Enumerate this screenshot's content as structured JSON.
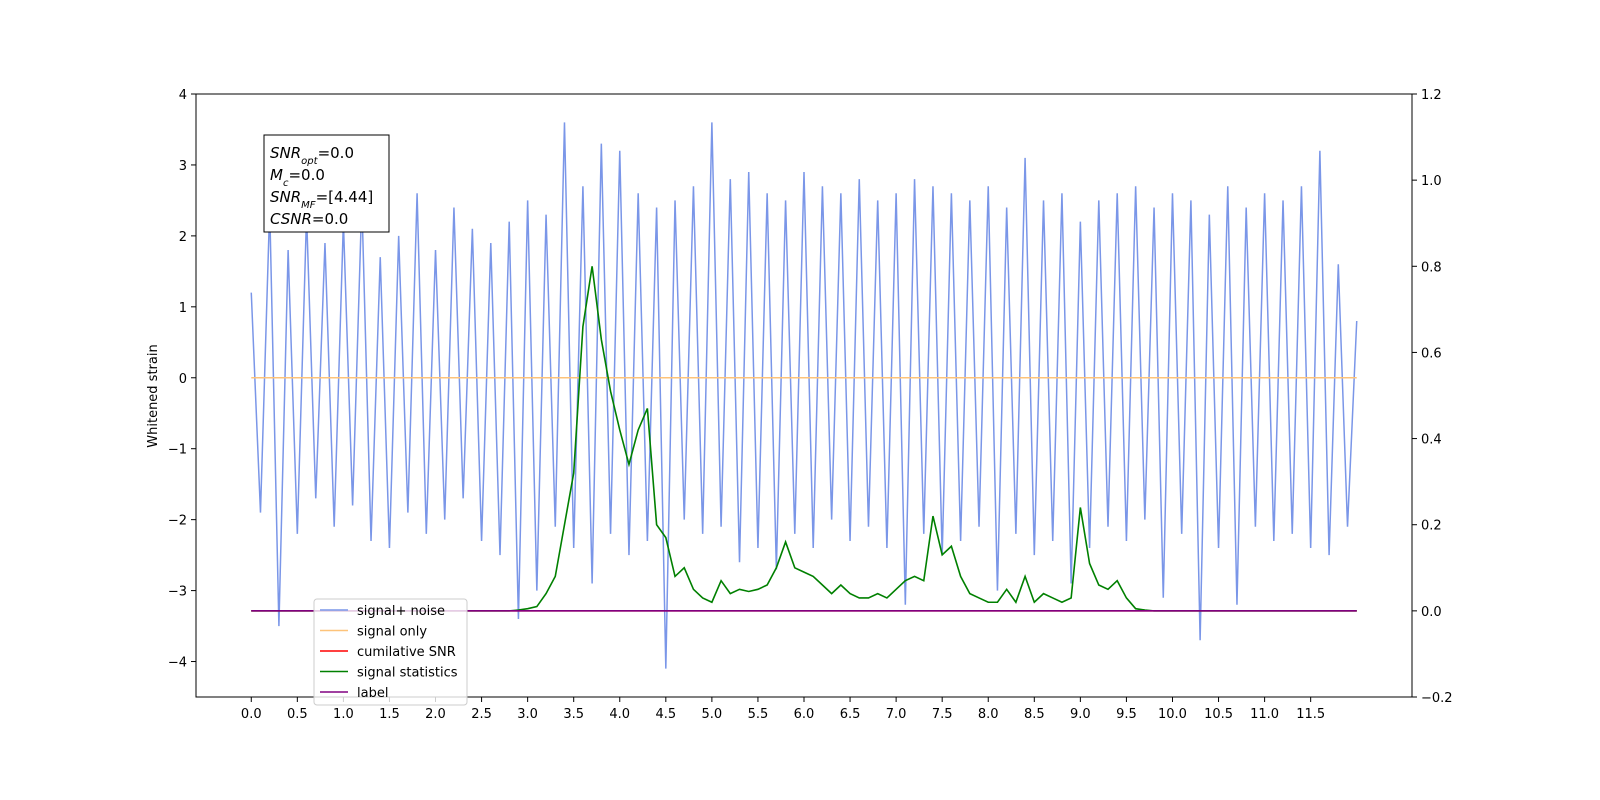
{
  "chart_data": {
    "type": "line",
    "ylabel": "Whitened strain",
    "annotations": [
      [
        "SNR",
        "opt",
        "=0.0"
      ],
      [
        "M",
        "c",
        "=0.0"
      ],
      [
        "SNR",
        "MF",
        "=[4.44]"
      ],
      [
        "CSNR",
        "",
        "=0.0"
      ]
    ],
    "x": [
      0.0,
      0.1,
      0.2,
      0.3,
      0.4,
      0.5,
      0.6,
      0.7,
      0.8,
      0.9,
      1.0,
      1.1,
      1.2,
      1.3,
      1.4,
      1.5,
      1.6,
      1.7,
      1.8,
      1.9,
      2.0,
      2.1,
      2.2,
      2.3,
      2.4,
      2.5,
      2.6,
      2.7,
      2.8,
      2.9,
      3.0,
      3.1,
      3.2,
      3.3,
      3.4,
      3.5,
      3.6,
      3.7,
      3.8,
      3.9,
      4.0,
      4.1,
      4.2,
      4.3,
      4.4,
      4.5,
      4.6,
      4.7,
      4.8,
      4.9,
      5.0,
      5.1,
      5.2,
      5.3,
      5.4,
      5.5,
      5.6,
      5.7,
      5.8,
      5.9,
      6.0,
      6.1,
      6.2,
      6.3,
      6.4,
      6.5,
      6.6,
      6.7,
      6.8,
      6.9,
      7.0,
      7.1,
      7.2,
      7.3,
      7.4,
      7.5,
      7.6,
      7.7,
      7.8,
      7.9,
      8.0,
      8.1,
      8.2,
      8.3,
      8.4,
      8.5,
      8.6,
      8.7,
      8.8,
      8.9,
      9.0,
      9.1,
      9.2,
      9.3,
      9.4,
      9.5,
      9.6,
      9.7,
      9.8,
      9.9,
      10.0,
      10.1,
      10.2,
      10.3,
      10.4,
      10.5,
      10.6,
      10.7,
      10.8,
      10.9,
      11.0,
      11.1,
      11.2,
      11.3,
      11.4,
      11.5,
      11.6,
      11.7,
      11.8,
      11.9,
      12.0
    ],
    "series": [
      {
        "name": "signal+ noise",
        "color": "#7a96e8",
        "values": [
          1.2,
          -1.9,
          2.4,
          -3.5,
          1.8,
          -2.2,
          2.3,
          -1.7,
          1.9,
          -2.1,
          2.2,
          -1.8,
          2.5,
          -2.3,
          1.7,
          -2.4,
          2.0,
          -1.9,
          2.6,
          -2.2,
          1.8,
          -2.0,
          2.4,
          -1.7,
          2.1,
          -2.3,
          1.9,
          -2.5,
          2.2,
          -3.4,
          2.5,
          -3.0,
          2.3,
          -2.1,
          3.6,
          -2.4,
          2.7,
          -2.9,
          3.3,
          -2.2,
          3.2,
          -2.5,
          2.6,
          -2.3,
          2.4,
          -4.1,
          2.5,
          -2.0,
          2.7,
          -2.2,
          3.6,
          -2.1,
          2.8,
          -2.6,
          2.9,
          -2.4,
          2.6,
          -2.7,
          2.5,
          -2.2,
          2.9,
          -2.4,
          2.7,
          -2.0,
          2.6,
          -2.3,
          2.8,
          -2.1,
          2.5,
          -2.4,
          2.6,
          -3.2,
          2.8,
          -2.2,
          2.7,
          -2.5,
          2.6,
          -2.3,
          2.5,
          -2.1,
          2.7,
          -3.0,
          2.4,
          -2.2,
          3.1,
          -2.5,
          2.5,
          -2.3,
          2.6,
          -2.9,
          2.2,
          -2.4,
          2.5,
          -2.1,
          2.6,
          -2.3,
          2.7,
          -2.0,
          2.4,
          -3.1,
          2.6,
          -2.2,
          2.5,
          -3.7,
          2.3,
          -2.4,
          2.7,
          -3.2,
          2.4,
          -2.1,
          2.6,
          -2.3,
          2.5,
          -2.2,
          2.7,
          -2.4,
          3.2,
          -2.5,
          1.6,
          -2.1,
          0.8
        ]
      },
      {
        "name": "signal only",
        "color": "#fdc37a",
        "values": [
          0,
          0,
          0,
          0,
          0,
          0,
          0,
          0,
          0,
          0,
          0,
          0,
          0,
          0,
          0,
          0,
          0,
          0,
          0,
          0,
          0,
          0,
          0,
          0,
          0,
          0,
          0,
          0,
          0,
          0,
          0,
          0,
          0,
          0,
          0,
          0,
          0,
          0,
          0,
          0,
          0,
          0,
          0,
          0,
          0,
          0,
          0,
          0,
          0,
          0,
          0,
          0,
          0,
          0,
          0,
          0,
          0,
          0,
          0,
          0,
          0,
          0,
          0,
          0,
          0,
          0,
          0,
          0,
          0,
          0,
          0,
          0,
          0,
          0,
          0,
          0,
          0,
          0,
          0,
          0,
          0,
          0,
          0,
          0,
          0,
          0,
          0,
          0,
          0,
          0,
          0,
          0,
          0,
          0,
          0,
          0,
          0,
          0,
          0,
          0,
          0,
          0,
          0,
          0,
          0,
          0,
          0,
          0,
          0,
          0,
          0,
          0,
          0,
          0,
          0,
          0,
          0,
          0,
          0,
          0,
          0
        ]
      },
      {
        "name": "cumilative SNR",
        "color": "#ff0000",
        "axis": "y2",
        "values": [
          0,
          0,
          0,
          0,
          0,
          0,
          0,
          0,
          0,
          0,
          0,
          0,
          0,
          0,
          0,
          0,
          0,
          0,
          0,
          0,
          0,
          0,
          0,
          0,
          0,
          0,
          0,
          0,
          0,
          0,
          0,
          0,
          0,
          0,
          0,
          0,
          0,
          0,
          0,
          0,
          0,
          0,
          0,
          0,
          0,
          0,
          0,
          0,
          0,
          0,
          0,
          0,
          0,
          0,
          0,
          0,
          0,
          0,
          0,
          0,
          0,
          0,
          0,
          0,
          0,
          0,
          0,
          0,
          0,
          0,
          0,
          0,
          0,
          0,
          0,
          0,
          0,
          0,
          0,
          0,
          0,
          0,
          0,
          0,
          0,
          0,
          0,
          0,
          0,
          0,
          0,
          0,
          0,
          0,
          0,
          0,
          0,
          0,
          0,
          0,
          0,
          0,
          0,
          0,
          0,
          0,
          0,
          0,
          0,
          0,
          0,
          0,
          0,
          0,
          0,
          0,
          0,
          0,
          0,
          0,
          0
        ]
      },
      {
        "name": "signal statistics",
        "color": "#008000",
        "axis": "y2",
        "values": [
          0,
          0,
          0,
          0,
          0,
          0,
          0,
          0,
          0,
          0,
          0,
          0,
          0,
          0,
          0,
          0,
          0,
          0,
          0,
          0,
          0,
          0,
          0,
          0,
          0,
          0,
          0,
          0,
          0,
          0.002,
          0.005,
          0.01,
          0.04,
          0.08,
          0.2,
          0.32,
          0.66,
          0.8,
          0.63,
          0.51,
          0.42,
          0.34,
          0.42,
          0.47,
          0.2,
          0.17,
          0.08,
          0.1,
          0.05,
          0.03,
          0.02,
          0.07,
          0.04,
          0.05,
          0.045,
          0.05,
          0.06,
          0.1,
          0.16,
          0.1,
          0.09,
          0.08,
          0.06,
          0.04,
          0.06,
          0.04,
          0.03,
          0.03,
          0.04,
          0.03,
          0.05,
          0.07,
          0.08,
          0.07,
          0.22,
          0.13,
          0.15,
          0.08,
          0.04,
          0.03,
          0.02,
          0.02,
          0.05,
          0.02,
          0.08,
          0.02,
          0.04,
          0.03,
          0.02,
          0.03,
          0.24,
          0.11,
          0.06,
          0.05,
          0.07,
          0.03,
          0.005,
          0.002,
          0,
          0,
          0,
          0,
          0,
          0,
          0,
          0,
          0,
          0,
          0,
          0,
          0,
          0,
          0,
          0,
          0,
          0,
          0,
          0,
          0,
          0,
          0
        ]
      },
      {
        "name": "label",
        "color": "#800080",
        "axis": "y2",
        "values": [
          0,
          0,
          0,
          0,
          0,
          0,
          0,
          0,
          0,
          0,
          0,
          0,
          0,
          0,
          0,
          0,
          0,
          0,
          0,
          0,
          0,
          0,
          0,
          0,
          0,
          0,
          0,
          0,
          0,
          0,
          0,
          0,
          0,
          0,
          0,
          0,
          0,
          0,
          0,
          0,
          0,
          0,
          0,
          0,
          0,
          0,
          0,
          0,
          0,
          0,
          0,
          0,
          0,
          0,
          0,
          0,
          0,
          0,
          0,
          0,
          0,
          0,
          0,
          0,
          0,
          0,
          0,
          0,
          0,
          0,
          0,
          0,
          0,
          0,
          0,
          0,
          0,
          0,
          0,
          0,
          0,
          0,
          0,
          0,
          0,
          0,
          0,
          0,
          0,
          0,
          0,
          0,
          0,
          0,
          0,
          0,
          0,
          0,
          0,
          0,
          0,
          0,
          0,
          0,
          0,
          0,
          0,
          0,
          0,
          0,
          0,
          0,
          0,
          0,
          0,
          0,
          0,
          0,
          0,
          0,
          0
        ]
      }
    ],
    "xlim": [
      -0.6,
      12.6
    ],
    "xticks": [
      {
        "value": 0,
        "label": "0.0"
      },
      {
        "value": 0.5,
        "label": "0.5"
      },
      {
        "value": 1,
        "label": "1.0"
      },
      {
        "value": 1.5,
        "label": "1.5"
      },
      {
        "value": 2,
        "label": "2.0"
      },
      {
        "value": 2.5,
        "label": "2.5"
      },
      {
        "value": 3,
        "label": "3.0"
      },
      {
        "value": 3.5,
        "label": "3.5"
      },
      {
        "value": 4,
        "label": "4.0"
      },
      {
        "value": 4.5,
        "label": "4.5"
      },
      {
        "value": 5,
        "label": "5.0"
      },
      {
        "value": 5.5,
        "label": "5.5"
      },
      {
        "value": 6,
        "label": "6.0"
      },
      {
        "value": 6.5,
        "label": "6.5"
      },
      {
        "value": 7,
        "label": "7.0"
      },
      {
        "value": 7.5,
        "label": "7.5"
      },
      {
        "value": 8,
        "label": "8.0"
      },
      {
        "value": 8.5,
        "label": "8.5"
      },
      {
        "value": 9,
        "label": "9.0"
      },
      {
        "value": 9.5,
        "label": "9.5"
      },
      {
        "value": 10,
        "label": "10.0"
      },
      {
        "value": 10.5,
        "label": "10.5"
      },
      {
        "value": 11,
        "label": "11.0"
      },
      {
        "value": 11.5,
        "label": "11.5"
      }
    ],
    "ylim": [
      -4.5,
      4
    ],
    "yticks": [
      {
        "value": -4,
        "label": "−4"
      },
      {
        "value": -3,
        "label": "−3"
      },
      {
        "value": -2,
        "label": "−2"
      },
      {
        "value": -1,
        "label": "−1"
      },
      0,
      1,
      2,
      3,
      4
    ],
    "y2lim": [
      -0.2,
      1.2
    ],
    "y2ticks": [
      {
        "value": -0.2,
        "label": "−0.2"
      },
      {
        "value": 0,
        "label": "0.0"
      },
      0.2,
      0.4,
      0.6,
      0.8,
      {
        "value": 1,
        "label": "1.0"
      },
      {
        "value": 1.2,
        "label": "1.2"
      }
    ],
    "legend": "lower left"
  }
}
